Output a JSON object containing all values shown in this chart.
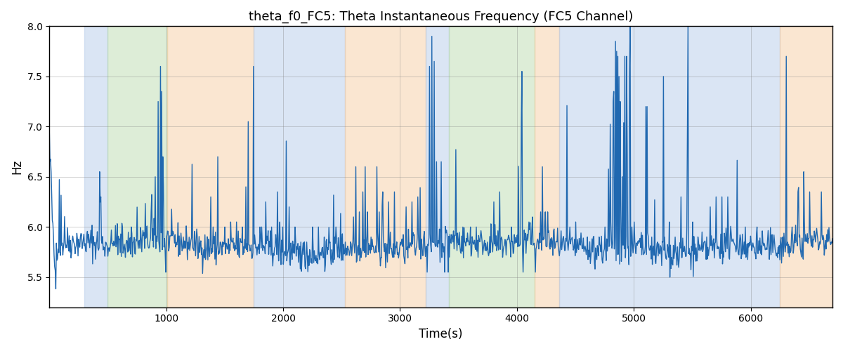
{
  "title": "theta_f0_FC5: Theta Instantaneous Frequency (FC5 Channel)",
  "xlabel": "Time(s)",
  "ylabel": "Hz",
  "ylim": [
    5.2,
    8.0
  ],
  "xlim": [
    0,
    6700
  ],
  "line_color": "#2068B0",
  "line_width": 1.0,
  "bg_regions": [
    {
      "start": 300,
      "end": 500,
      "color": "#AEC6E8",
      "alpha": 0.45
    },
    {
      "start": 500,
      "end": 1010,
      "color": "#B5D9A8",
      "alpha": 0.45
    },
    {
      "start": 1010,
      "end": 1750,
      "color": "#F5C89A",
      "alpha": 0.45
    },
    {
      "start": 1750,
      "end": 2530,
      "color": "#AEC6E8",
      "alpha": 0.45
    },
    {
      "start": 2530,
      "end": 3220,
      "color": "#F5C89A",
      "alpha": 0.45
    },
    {
      "start": 3220,
      "end": 3420,
      "color": "#AEC6E8",
      "alpha": 0.45
    },
    {
      "start": 3420,
      "end": 4150,
      "color": "#B5D9A8",
      "alpha": 0.45
    },
    {
      "start": 4150,
      "end": 4360,
      "color": "#F5C89A",
      "alpha": 0.45
    },
    {
      "start": 4360,
      "end": 6250,
      "color": "#AEC6E8",
      "alpha": 0.45
    },
    {
      "start": 6250,
      "end": 6700,
      "color": "#F5C89A",
      "alpha": 0.45
    }
  ],
  "seed": 42,
  "n_points": 1340,
  "base_freq": 5.8,
  "noise_scale": 0.08,
  "spike_probability": 0.025,
  "spike_scale": 0.7
}
